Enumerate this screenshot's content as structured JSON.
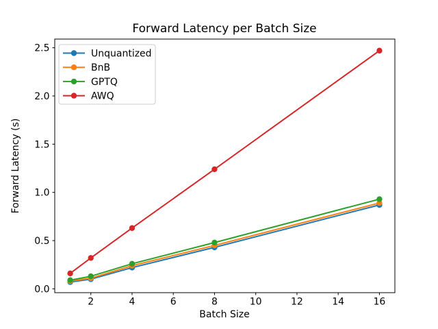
{
  "figure": {
    "background": "#ffffff",
    "text_color": "#000000",
    "spine_color": "#000000",
    "legend_border_color": "#cccccc"
  },
  "chart_data": {
    "type": "line",
    "title": "Forward Latency per Batch Size",
    "xlabel": "Batch Size",
    "ylabel": "Forward Latency (s)",
    "x": [
      1,
      2,
      4,
      8,
      16
    ],
    "series": [
      {
        "name": "Unquantized",
        "color": "#1f77b4",
        "values": [
          0.07,
          0.1,
          0.22,
          0.43,
          0.87
        ]
      },
      {
        "name": "BnB",
        "color": "#ff7f0e",
        "values": [
          0.08,
          0.11,
          0.24,
          0.45,
          0.89
        ]
      },
      {
        "name": "GPTQ",
        "color": "#2ca02c",
        "values": [
          0.09,
          0.13,
          0.26,
          0.48,
          0.93
        ]
      },
      {
        "name": "AWQ",
        "color": "#d62728",
        "values": [
          0.16,
          0.32,
          0.63,
          1.24,
          2.47
        ]
      }
    ],
    "xticks": [
      2,
      4,
      6,
      8,
      10,
      12,
      14,
      16
    ],
    "yticks": [
      0.0,
      0.5,
      1.0,
      1.5,
      2.0,
      2.5
    ],
    "xlim": [
      0.25,
      16.75
    ],
    "ylim": [
      -0.04,
      2.59
    ],
    "grid": false,
    "marker": "o",
    "legend_position": "upper left"
  }
}
